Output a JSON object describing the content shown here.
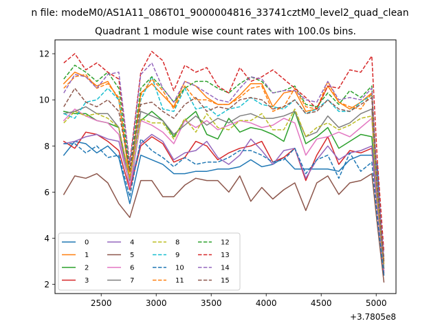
{
  "figure": {
    "suptitle": "n file: modeM0/AS1A11_086T01_9000004816_33741cztM0_level2_quad_clean",
    "title": "Quadrant 1 module wise count rates with 100.0s bins.",
    "offset_label": "+3.7805e8"
  },
  "chart_data": {
    "type": "line",
    "title": "Quadrant 1 module wise count rates with 100.0s bins.",
    "xlabel": "",
    "ylabel": "",
    "x_offset": 378050000,
    "x": [
      2160,
      2260,
      2360,
      2460,
      2560,
      2660,
      2760,
      2860,
      2960,
      3060,
      3160,
      3260,
      3360,
      3460,
      3560,
      3660,
      3760,
      3860,
      3960,
      4060,
      4160,
      4260,
      4360,
      4460,
      4560,
      4660,
      4760,
      4860,
      4960,
      5010,
      5070
    ],
    "xlim": [
      2080,
      5180
    ],
    "ylim": [
      1.6,
      12.6
    ],
    "xticks": [
      2500,
      3000,
      3500,
      4000,
      4500,
      5000
    ],
    "yticks": [
      2,
      4,
      6,
      8,
      10,
      12
    ],
    "grid": false,
    "legend_position": "lower-left",
    "series": [
      {
        "name": "0",
        "color": "#1f77b4",
        "dash": "solid",
        "values": [
          7.6,
          8.2,
          8.1,
          7.7,
          8.0,
          7.5,
          5.5,
          7.6,
          7.4,
          7.2,
          6.8,
          6.8,
          6.9,
          6.9,
          7.0,
          7.0,
          7.1,
          7.4,
          7.1,
          7.2,
          7.5,
          7.0,
          7.0,
          7.0,
          7.0,
          6.9,
          7.4,
          7.6,
          7.6,
          7.2,
          2.4
        ]
      },
      {
        "name": "1",
        "color": "#ff7f0e",
        "dash": "solid",
        "values": [
          10.7,
          11.2,
          11.0,
          10.6,
          10.8,
          10.0,
          6.5,
          10.3,
          10.7,
          10.2,
          9.7,
          10.8,
          10.6,
          10.1,
          9.8,
          9.8,
          10.2,
          10.7,
          10.7,
          9.7,
          10.3,
          10.4,
          9.5,
          9.6,
          10.6,
          9.9,
          9.6,
          9.9,
          10.3,
          6.2,
          2.9
        ]
      },
      {
        "name": "2",
        "color": "#2ca02c",
        "dash": "solid",
        "values": [
          9.5,
          9.4,
          9.4,
          9.1,
          9.0,
          8.8,
          6.1,
          9.1,
          9.5,
          9.1,
          8.4,
          9.1,
          9.5,
          8.5,
          8.3,
          9.2,
          8.6,
          8.8,
          8.7,
          8.5,
          8.2,
          9.5,
          8.1,
          8.4,
          8.8,
          7.9,
          8.2,
          8.5,
          8.4,
          5.4,
          2.7
        ]
      },
      {
        "name": "3",
        "color": "#d62728",
        "dash": "solid",
        "values": [
          8.2,
          7.9,
          8.6,
          8.5,
          8.2,
          7.8,
          6.1,
          8.0,
          8.4,
          8.1,
          7.3,
          7.5,
          8.2,
          8.0,
          7.4,
          7.7,
          7.9,
          8.0,
          8.2,
          7.3,
          7.5,
          7.9,
          6.5,
          7.6,
          8.4,
          7.2,
          7.8,
          7.7,
          7.9,
          5.3,
          2.5
        ]
      },
      {
        "name": "4",
        "color": "#9467bd",
        "dash": "solid",
        "values": [
          8.1,
          8.2,
          8.4,
          8.5,
          8.3,
          8.2,
          6.3,
          8.1,
          8.5,
          8.2,
          7.4,
          7.7,
          7.8,
          8.2,
          7.5,
          7.2,
          7.6,
          8.3,
          7.8,
          7.2,
          7.8,
          7.9,
          6.6,
          7.4,
          8.0,
          7.4,
          7.7,
          7.8,
          8.0,
          5.4,
          2.6
        ]
      },
      {
        "name": "5",
        "color": "#8c564b",
        "dash": "solid",
        "values": [
          5.9,
          6.7,
          6.6,
          6.8,
          6.4,
          5.5,
          4.9,
          6.5,
          6.5,
          5.8,
          5.8,
          6.3,
          6.6,
          6.5,
          6.5,
          6.0,
          6.7,
          5.6,
          6.2,
          5.7,
          6.1,
          6.4,
          5.2,
          6.4,
          6.7,
          5.9,
          6.4,
          6.5,
          6.8,
          4.6,
          2.1
        ]
      },
      {
        "name": "6",
        "color": "#e377c2",
        "dash": "solid",
        "values": [
          9.1,
          9.6,
          9.3,
          9.1,
          9.0,
          8.5,
          6.2,
          9.1,
          8.9,
          8.6,
          8.1,
          9.1,
          8.8,
          9.1,
          8.7,
          8.9,
          9.1,
          9.0,
          8.8,
          8.9,
          9.2,
          9.0,
          7.6,
          8.3,
          8.4,
          8.6,
          8.4,
          8.8,
          9.2,
          5.6,
          2.6
        ]
      },
      {
        "name": "7",
        "color": "#7f7f7f",
        "dash": "solid",
        "values": [
          9.4,
          9.5,
          9.7,
          9.4,
          9.4,
          8.8,
          6.5,
          9.5,
          9.3,
          9.1,
          8.5,
          8.9,
          9.3,
          8.9,
          9.2,
          9.0,
          9.3,
          9.4,
          9.2,
          9.2,
          9.3,
          9.5,
          8.4,
          8.6,
          9.3,
          8.8,
          9.0,
          9.4,
          9.6,
          5.8,
          2.7
        ]
      },
      {
        "name": "8",
        "color": "#bcbd22",
        "dash": "dash",
        "values": [
          9.0,
          9.5,
          9.3,
          9.4,
          9.2,
          8.8,
          6.6,
          9.2,
          9.0,
          9.0,
          8.3,
          9.2,
          8.6,
          9.4,
          8.8,
          8.7,
          9.1,
          9.1,
          9.4,
          8.7,
          8.7,
          9.6,
          8.4,
          8.8,
          9.0,
          8.7,
          8.9,
          9.2,
          9.3,
          5.7,
          2.9
        ]
      },
      {
        "name": "9",
        "color": "#17becf",
        "dash": "dash",
        "values": [
          9.4,
          9.2,
          9.9,
          10.0,
          10.5,
          10.0,
          6.9,
          10.0,
          11.0,
          9.6,
          9.5,
          10.5,
          9.6,
          9.7,
          9.3,
          9.6,
          9.7,
          10.1,
          9.8,
          9.7,
          9.6,
          10.0,
          9.4,
          9.6,
          10.0,
          9.5,
          9.5,
          9.9,
          10.2,
          6.2,
          3.0
        ]
      },
      {
        "name": "10",
        "color": "#1f77b4",
        "dash": "dash",
        "values": [
          8.1,
          8.1,
          7.7,
          8.0,
          7.5,
          7.6,
          5.8,
          8.3,
          7.8,
          7.5,
          7.1,
          7.5,
          7.2,
          7.3,
          7.3,
          7.5,
          7.8,
          7.8,
          7.6,
          7.3,
          7.4,
          7.9,
          6.8,
          7.4,
          7.6,
          6.6,
          7.7,
          6.9,
          7.3,
          4.9,
          2.4
        ]
      },
      {
        "name": "11",
        "color": "#ff7f0e",
        "dash": "dash",
        "values": [
          10.5,
          11.0,
          11.1,
          10.5,
          10.7,
          10.1,
          6.7,
          10.2,
          10.9,
          10.4,
          9.6,
          10.6,
          10.0,
          10.0,
          9.8,
          9.8,
          10.1,
          10.5,
          10.6,
          9.5,
          9.7,
          10.5,
          9.7,
          9.6,
          10.8,
          9.9,
          9.7,
          9.6,
          10.3,
          6.3,
          3.0
        ]
      },
      {
        "name": "12",
        "color": "#2ca02c",
        "dash": "dash",
        "values": [
          10.9,
          11.5,
          11.2,
          10.8,
          11.2,
          10.5,
          7.0,
          10.5,
          11.0,
          10.5,
          9.9,
          10.5,
          10.8,
          10.8,
          10.5,
          10.3,
          10.7,
          11.0,
          10.8,
          10.3,
          10.4,
          10.6,
          9.8,
          9.7,
          10.3,
          9.8,
          10.4,
          10.1,
          10.6,
          6.4,
          3.1
        ]
      },
      {
        "name": "13",
        "color": "#d62728",
        "dash": "dash",
        "values": [
          11.6,
          12.0,
          11.3,
          11.6,
          11.2,
          10.9,
          7.3,
          11.2,
          12.1,
          11.7,
          10.4,
          11.5,
          11.2,
          11.4,
          10.6,
          10.3,
          11.4,
          10.8,
          11.0,
          11.3,
          10.9,
          10.5,
          10.1,
          9.6,
          10.6,
          10.5,
          11.3,
          11.2,
          11.9,
          7.4,
          3.4
        ]
      },
      {
        "name": "14",
        "color": "#9467bd",
        "dash": "dash",
        "values": [
          10.3,
          11.1,
          11.0,
          10.5,
          11.1,
          11.2,
          7.2,
          11.1,
          11.6,
          10.5,
          9.9,
          10.8,
          10.6,
          10.3,
          10.0,
          9.9,
          10.5,
          11.0,
          10.9,
          10.3,
          10.4,
          10.4,
          10.0,
          9.9,
          10.8,
          10.0,
          10.1,
          10.0,
          10.5,
          6.5,
          3.2
        ]
      },
      {
        "name": "15",
        "color": "#8c564b",
        "dash": "dash",
        "values": [
          9.7,
          10.5,
          9.9,
          9.7,
          10.0,
          9.5,
          6.9,
          9.8,
          9.9,
          9.5,
          9.2,
          9.8,
          10.1,
          9.5,
          9.7,
          9.6,
          10.0,
          10.1,
          10.0,
          9.6,
          9.7,
          10.0,
          9.4,
          9.5,
          10.0,
          9.6,
          9.5,
          9.8,
          10.1,
          6.1,
          3.0
        ]
      }
    ]
  }
}
